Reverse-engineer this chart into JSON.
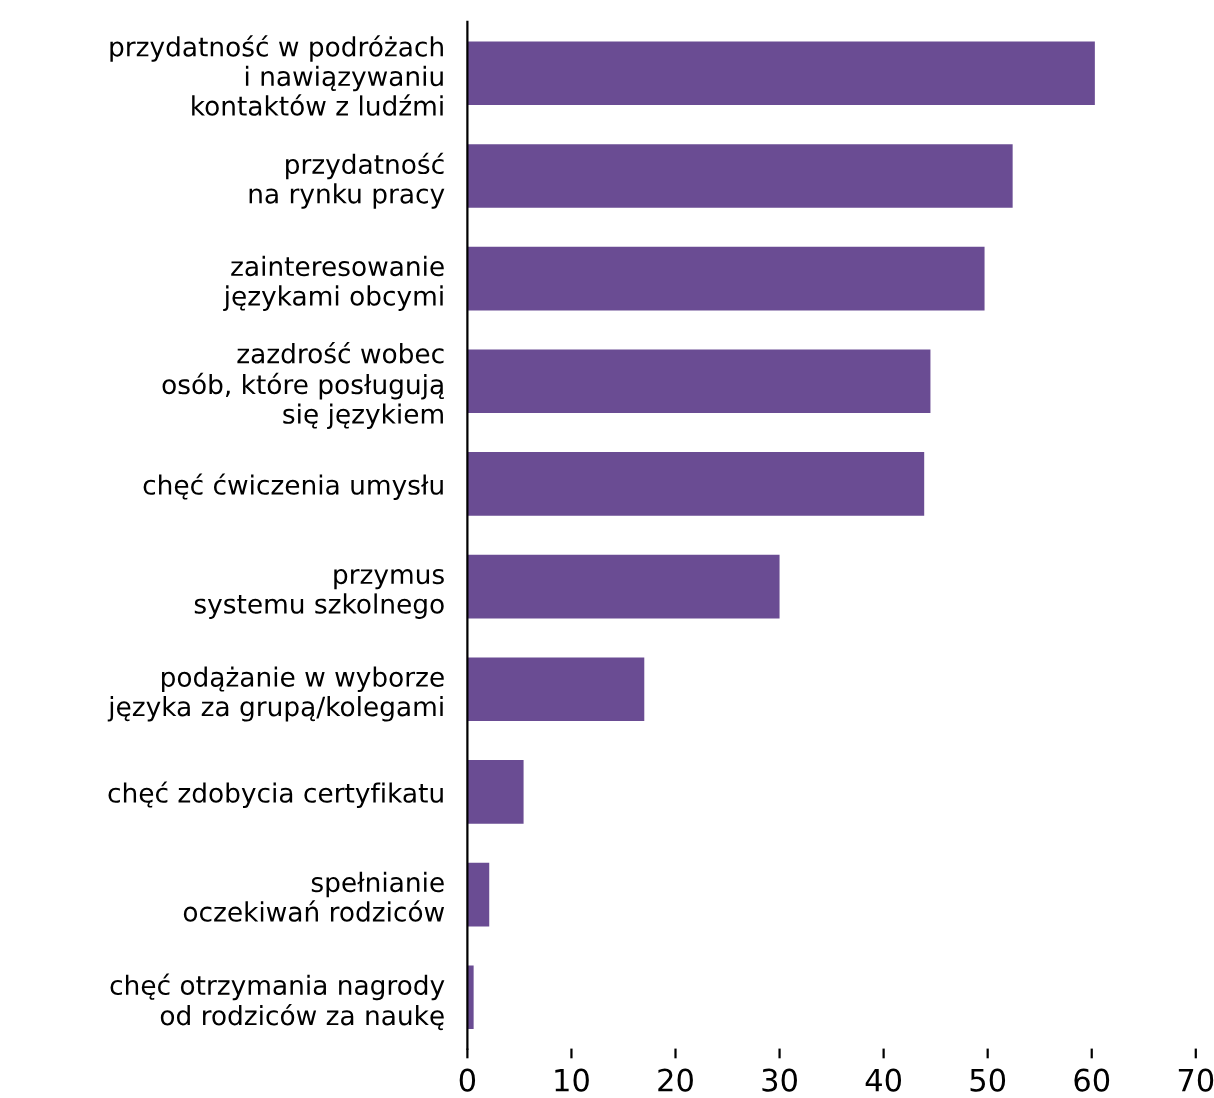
{
  "chart_data": {
    "type": "bar",
    "orientation": "horizontal",
    "categories": [
      "przydatność w podróżach\ni nawiązywaniu\nkontaktów z ludźmi",
      "przydatność\nna rynku pracy",
      "zainteresowanie\njęzykami obcymi",
      "zazdrość wobec\nosób, które posługują\nsię językiem",
      "chęć ćwiczenia umysłu",
      "przymus\nsystemu szkolnego",
      "podążanie w wyborze\njęzyka za grupą/kolegami",
      "chęć zdobycia certyfikatu",
      "spełnianie\noczekiwań rodziców",
      "chęć otrzymania nagrody\nod rodziców za naukę"
    ],
    "values": [
      60.3,
      52.4,
      49.7,
      44.5,
      43.9,
      30.0,
      17.0,
      5.4,
      2.1,
      0.6
    ],
    "color": "#6a4c93",
    "xlim": [
      0,
      70
    ],
    "xticks": [
      0,
      10,
      20,
      30,
      40,
      50,
      60,
      70
    ],
    "grid": false,
    "legend": false
  }
}
